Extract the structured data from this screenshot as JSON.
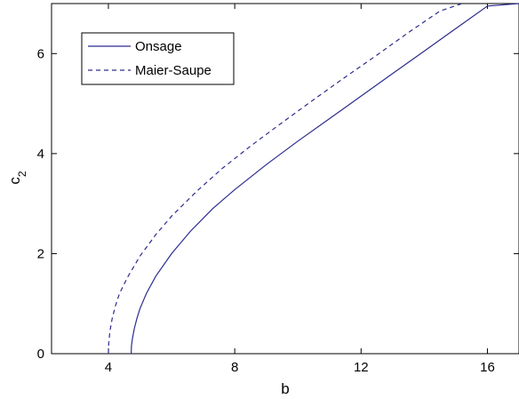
{
  "chart_data": {
    "type": "line",
    "title": "",
    "xlabel": "b",
    "ylabel_base": "c",
    "ylabel_sub": "2",
    "xlim": [
      2.2,
      17
    ],
    "ylim": [
      0,
      7
    ],
    "xticks": [
      4,
      8,
      12,
      16
    ],
    "yticks": [
      0,
      2,
      4,
      6
    ],
    "xtick_labels": [
      "4",
      "8",
      "12",
      "16"
    ],
    "ytick_labels": [
      "0",
      "2",
      "4",
      "6"
    ],
    "grid": false,
    "legend": {
      "position": "top-left"
    },
    "series": [
      {
        "name": "Onsage",
        "style": "solid",
        "color": "#2b2b8f",
        "x": [
          4.72,
          4.73,
          4.76,
          4.82,
          4.9,
          5.0,
          5.2,
          5.5,
          6.0,
          6.6,
          7.3,
          8.0,
          9.0,
          10.0,
          11.0,
          12.0,
          13.0,
          14.0,
          15.0,
          16.0,
          17.0
        ],
        "y": [
          0.0,
          0.15,
          0.3,
          0.5,
          0.7,
          0.9,
          1.2,
          1.55,
          2.0,
          2.45,
          2.9,
          3.28,
          3.78,
          4.25,
          4.7,
          5.15,
          5.6,
          6.05,
          6.5,
          6.95,
          7.0
        ]
      },
      {
        "name": "Maier-Saupe",
        "style": "dashed",
        "color": "#2b2b8f",
        "x": [
          4.0,
          4.01,
          4.05,
          4.12,
          4.22,
          4.35,
          4.6,
          5.0,
          5.5,
          6.0,
          6.8,
          7.6,
          8.5,
          9.5,
          10.5,
          11.5,
          12.5,
          13.5,
          14.5,
          15.2
        ],
        "y": [
          0.0,
          0.2,
          0.45,
          0.7,
          0.95,
          1.2,
          1.52,
          1.95,
          2.38,
          2.75,
          3.25,
          3.7,
          4.15,
          4.62,
          5.08,
          5.53,
          5.97,
          6.42,
          6.85,
          7.0
        ]
      }
    ]
  }
}
